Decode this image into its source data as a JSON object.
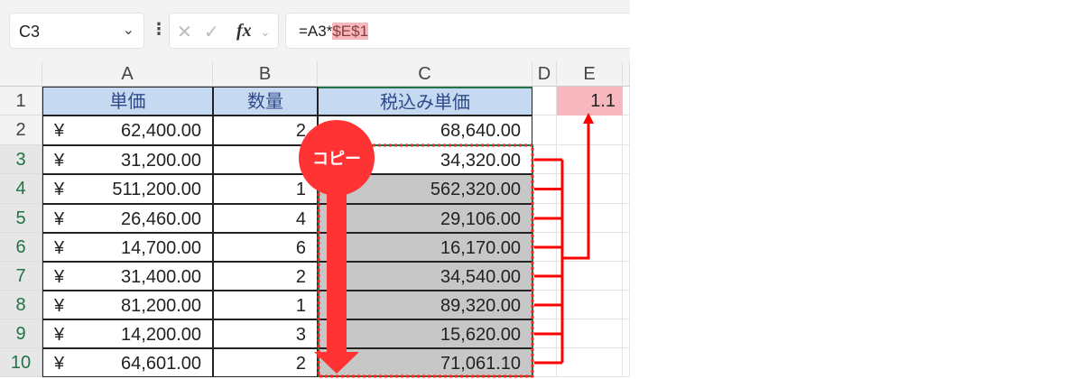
{
  "name_box": {
    "value": "C3"
  },
  "formula_bar": {
    "prefix": "=A3*",
    "highlight": "$E$1",
    "fx": "fx"
  },
  "columns": [
    "A",
    "B",
    "C",
    "D",
    "E"
  ],
  "rows": [
    "1",
    "2",
    "3",
    "4",
    "5",
    "6",
    "7",
    "8",
    "9",
    "10"
  ],
  "headers": {
    "a": "単価",
    "b": "数量",
    "c": "税込み単価"
  },
  "currency": "¥",
  "table": [
    {
      "price": "62,400.00",
      "qty": "2",
      "taxed": "68,640.00"
    },
    {
      "price": "31,200.00",
      "qty": "",
      "taxed": "34,320.00"
    },
    {
      "price": "511,200.00",
      "qty": "1",
      "taxed": "562,320.00"
    },
    {
      "price": "26,460.00",
      "qty": "4",
      "taxed": "29,106.00"
    },
    {
      "price": "14,700.00",
      "qty": "6",
      "taxed": "16,170.00"
    },
    {
      "price": "31,400.00",
      "qty": "2",
      "taxed": "34,540.00"
    },
    {
      "price": "81,200.00",
      "qty": "1",
      "taxed": "89,320.00"
    },
    {
      "price": "14,200.00",
      "qty": "3",
      "taxed": "15,620.00"
    },
    {
      "price": "64,601.00",
      "qty": "2",
      "taxed": "71,061.10"
    }
  ],
  "e1": "1.1",
  "annotation": {
    "label": "コピー",
    "color": "#ff3333"
  }
}
